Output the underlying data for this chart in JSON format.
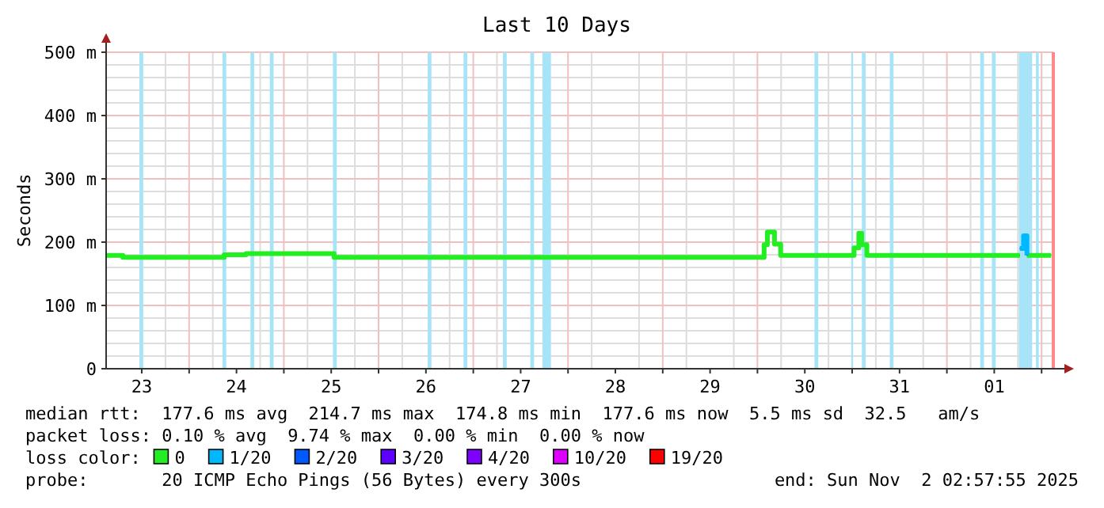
{
  "chart_data": {
    "type": "step",
    "title": "Last 10 Days",
    "ylabel": "Seconds",
    "legend_title": "loss color:",
    "legend": "bottom",
    "grid": true,
    "xlim": [
      "2025-10-23T02:58",
      "2025-11-02T02:58"
    ],
    "xticks": [
      {
        "value": "2025-10-23T12:00",
        "label": "23"
      },
      {
        "value": "2025-10-24T00:00",
        "label": null
      },
      {
        "value": "2025-10-24T12:00",
        "label": "24"
      },
      {
        "value": "2025-10-25T00:00",
        "label": null
      },
      {
        "value": "2025-10-25T12:00",
        "label": "25"
      },
      {
        "value": "2025-10-26T00:00",
        "label": null
      },
      {
        "value": "2025-10-26T12:00",
        "label": "26"
      },
      {
        "value": "2025-10-27T00:00",
        "label": null
      },
      {
        "value": "2025-10-27T12:00",
        "label": "27"
      },
      {
        "value": "2025-10-28T00:00",
        "label": null
      },
      {
        "value": "2025-10-28T12:00",
        "label": "28"
      },
      {
        "value": "2025-10-29T00:00",
        "label": null
      },
      {
        "value": "2025-10-29T12:00",
        "label": "29"
      },
      {
        "value": "2025-10-30T00:00",
        "label": null
      },
      {
        "value": "2025-10-30T12:00",
        "label": "30"
      },
      {
        "value": "2025-10-31T00:00",
        "label": null
      },
      {
        "value": "2025-10-31T12:00",
        "label": "31"
      },
      {
        "value": "2025-11-01T00:00",
        "label": null
      },
      {
        "value": "2025-11-01T12:00",
        "label": "01"
      },
      {
        "value": "2025-11-02T00:00",
        "label": null
      }
    ],
    "ylim": [
      0,
      500
    ],
    "yticks": [
      {
        "value": 0,
        "label": "0"
      },
      {
        "value": 100,
        "label": "100 m"
      },
      {
        "value": 200,
        "label": "200 m"
      },
      {
        "value": 300,
        "label": "300 m"
      },
      {
        "value": 400,
        "label": "400 m"
      },
      {
        "value": 500,
        "label": "500 m"
      }
    ],
    "series": [
      {
        "name": "0",
        "color": "#22ee22",
        "x": [
          "2025-10-23T02:58",
          "2025-10-23T07:12",
          "2025-10-24T08:53",
          "2025-10-24T14:24",
          "2025-10-25T12:43",
          "2025-10-30T01:41",
          "2025-10-30T02:31",
          "2025-10-30T04:19",
          "2025-10-30T05:02",
          "2025-10-30T05:53",
          "2025-10-31T00:29",
          "2025-10-31T01:41",
          "2025-10-31T02:24",
          "2025-10-31T03:43",
          "2025-11-01T18:29",
          "2025-11-01T20:17",
          "2025-11-02T02:24"
        ],
        "values": [
          179,
          176,
          180,
          182,
          176,
          196,
          216,
          197,
          197,
          179,
          191,
          214,
          196,
          179,
          null,
          179,
          179
        ]
      },
      {
        "name": "1/20",
        "color": "#00b8ff",
        "x": [
          "2025-11-01T18:29",
          "2025-11-01T19:26",
          "2025-11-01T20:17"
        ],
        "values": [
          190,
          210,
          179
        ]
      },
      {
        "name": "2/20",
        "color": "#0059ff"
      },
      {
        "name": "3/20",
        "color": "#5e00ff"
      },
      {
        "name": "4/20",
        "color": "#7e00ff"
      },
      {
        "name": "10/20",
        "color": "#dd00ff"
      },
      {
        "name": "19/20",
        "color": "#ff0000"
      }
    ],
    "bands": [
      {
        "axis": "x",
        "from": "2025-10-23T11:24",
        "to": "2025-10-23T12:22",
        "color": "#a8e4f8"
      },
      {
        "axis": "x",
        "from": "2025-10-24T08:27",
        "to": "2025-10-24T09:24",
        "color": "#a8e4f8"
      },
      {
        "axis": "x",
        "from": "2025-10-24T15:32",
        "to": "2025-10-24T16:29",
        "color": "#a8e4f8"
      },
      {
        "axis": "x",
        "from": "2025-10-24T20:27",
        "to": "2025-10-24T21:24",
        "color": "#a8e4f8"
      },
      {
        "axis": "x",
        "from": "2025-10-25T12:26",
        "to": "2025-10-25T13:24",
        "color": "#a8e4f8"
      },
      {
        "axis": "x",
        "from": "2025-10-26T12:26",
        "to": "2025-10-26T13:24",
        "color": "#a8e4f8"
      },
      {
        "axis": "x",
        "from": "2025-10-26T21:32",
        "to": "2025-10-26T22:29",
        "color": "#a8e4f8"
      },
      {
        "axis": "x",
        "from": "2025-10-27T07:31",
        "to": "2025-10-27T08:28",
        "color": "#a8e4f8"
      },
      {
        "axis": "x",
        "from": "2025-10-27T14:27",
        "to": "2025-10-27T15:24",
        "color": "#a8e4f8"
      },
      {
        "axis": "x",
        "from": "2025-10-27T17:31",
        "to": "2025-10-27T19:41",
        "color": "#a8e4f8"
      },
      {
        "axis": "x",
        "from": "2025-10-30T14:27",
        "to": "2025-10-30T15:24",
        "color": "#a8e4f8"
      },
      {
        "axis": "x",
        "from": "2025-10-30T23:46",
        "to": "2025-10-31T00:14",
        "color": "#a8e4f8"
      },
      {
        "axis": "x",
        "from": "2025-10-31T02:27",
        "to": "2025-10-31T03:24",
        "color": "#a8e4f8"
      },
      {
        "axis": "x",
        "from": "2025-10-31T09:32",
        "to": "2025-10-31T10:29",
        "color": "#a8e4f8"
      },
      {
        "axis": "x",
        "from": "2025-11-01T08:27",
        "to": "2025-11-01T09:24",
        "color": "#a8e4f8"
      },
      {
        "axis": "x",
        "from": "2025-11-01T11:24",
        "to": "2025-11-01T12:22",
        "color": "#a8e4f8"
      },
      {
        "axis": "x",
        "from": "2025-11-01T18:14",
        "to": "2025-11-01T21:36",
        "color": "#a8e4f8"
      },
      {
        "axis": "x",
        "from": "2025-11-01T22:34",
        "to": "2025-11-01T23:17",
        "color": "#a8e4f8"
      }
    ],
    "ref_lines": [
      {
        "axis": "x",
        "value": "2025-11-02T02:58",
        "label": null,
        "color": "#ff8888"
      }
    ],
    "annotations": [
      "median rtt:  177.6 ms avg  214.7 ms max  174.8 ms min  177.6 ms now  5.5 ms sd  32.5   am/s",
      "packet loss: 0.10 % avg  9.74 % max  0.00 % min  0.00 % now",
      "probe:       20 ICMP Echo Pings (56 Bytes) every 300s",
      "end: Sun Nov  2 02:57:55 2025"
    ]
  }
}
